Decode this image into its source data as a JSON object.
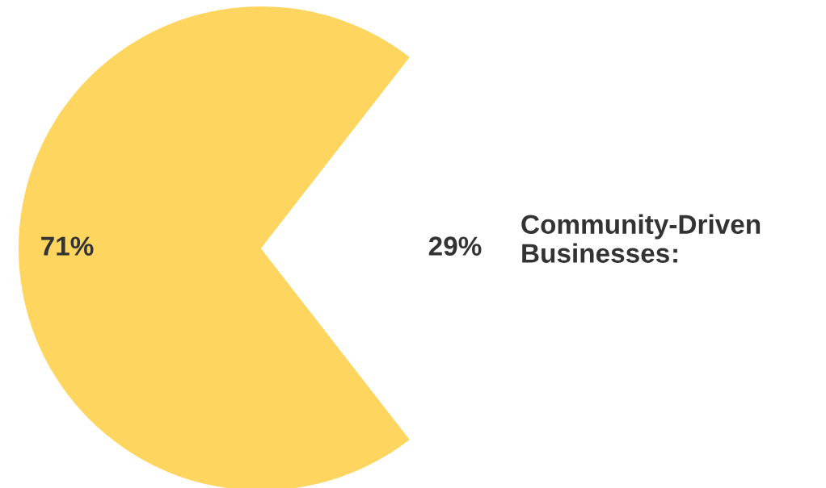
{
  "chart_data": {
    "type": "pie",
    "categories": [
      null,
      "Community-Driven Businesses"
    ],
    "values": [
      71,
      29
    ],
    "colors": [
      "#fdd55f",
      "#ffffff"
    ],
    "value_labels": [
      "71%",
      "29%"
    ],
    "annotations": [
      ":"
    ],
    "legend": false
  }
}
